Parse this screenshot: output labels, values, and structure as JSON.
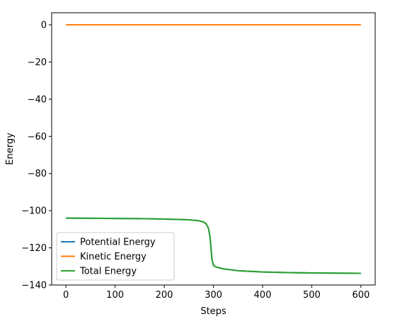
{
  "chart_data": {
    "type": "line",
    "title": "",
    "xlabel": "Steps",
    "ylabel": "Energy",
    "xlim": [
      -29,
      629
    ],
    "ylim": [
      -140,
      6.5
    ],
    "xticks": [
      0,
      100,
      200,
      300,
      400,
      500,
      600
    ],
    "yticks": [
      0,
      -20,
      -40,
      -60,
      -80,
      -100,
      -120,
      -140
    ],
    "xtick_labels": [
      "0",
      "100",
      "200",
      "300",
      "400",
      "500",
      "600"
    ],
    "ytick_labels": [
      "0",
      "−20",
      "−40",
      "−60",
      "−80",
      "−100",
      "−120",
      "−140"
    ],
    "grid": false,
    "legend_position": "lower-left",
    "series": [
      {
        "name": "Potential Energy",
        "color": "#1f77b4",
        "x": [
          0,
          50,
          100,
          150,
          200,
          250,
          270,
          280,
          285,
          290,
          293,
          295,
          297,
          300,
          305,
          320,
          350,
          400,
          450,
          500,
          550,
          600
        ],
        "y": [
          -104,
          -104.1,
          -104.2,
          -104.3,
          -104.5,
          -104.9,
          -105.4,
          -106.1,
          -107,
          -109.5,
          -114,
          -120,
          -126,
          -129.5,
          -130.3,
          -131.3,
          -132.3,
          -133,
          -133.3,
          -133.5,
          -133.6,
          -133.7
        ]
      },
      {
        "name": "Kinetic Energy",
        "color": "#ff7f0e",
        "x": [
          0,
          100,
          200,
          300,
          400,
          500,
          600
        ],
        "y": [
          0,
          0,
          0,
          0,
          0,
          0,
          0
        ]
      },
      {
        "name": "Total Energy",
        "color": "#2ca02c",
        "x": [
          0,
          50,
          100,
          150,
          200,
          250,
          270,
          280,
          285,
          290,
          293,
          295,
          297,
          300,
          305,
          320,
          350,
          400,
          450,
          500,
          550,
          600
        ],
        "y": [
          -104,
          -104.1,
          -104.2,
          -104.3,
          -104.5,
          -104.9,
          -105.4,
          -106.1,
          -107,
          -109.5,
          -114,
          -120,
          -126,
          -129.5,
          -130.3,
          -131.3,
          -132.3,
          -133,
          -133.3,
          -133.5,
          -133.6,
          -133.7
        ]
      }
    ]
  }
}
